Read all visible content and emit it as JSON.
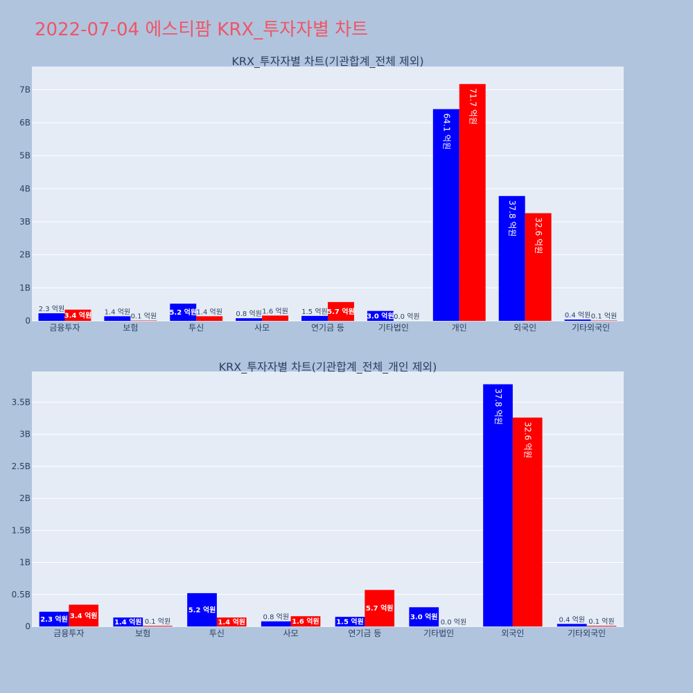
{
  "page": {
    "title": "2022-07-04 에스티팜 KRX_투자자별 차트"
  },
  "colors": {
    "background": "#b0c4de",
    "plot_bg": "#e5ecf6",
    "buy": "#0000ff",
    "sell": "#ff0000",
    "title": "#ef5566"
  },
  "chart_data": [
    {
      "type": "bar",
      "title": "KRX_투자자별 차트(기관합계_전체 제외)",
      "categories": [
        "금융투자",
        "보험",
        "투신",
        "사모",
        "연기금 등",
        "기타법인",
        "개인",
        "외국인",
        "기타외국인"
      ],
      "series": [
        {
          "values": [
            0.23,
            0.14,
            0.52,
            0.08,
            0.15,
            0.3,
            6.41,
            3.78,
            0.04
          ],
          "labels": [
            "2.3 억원",
            "1.4 억원",
            "5.2 억원",
            "0.8 억원",
            "1.5 억원",
            "3.0 억원",
            "64.1 억원",
            "37.8 억원",
            "0.4 억원"
          ]
        },
        {
          "values": [
            0.34,
            0.01,
            0.14,
            0.16,
            0.57,
            0.0,
            7.17,
            3.26,
            0.01
          ],
          "labels": [
            "3.4 억원",
            "0.1 억원",
            "1.4 억원",
            "1.6 억원",
            "5.7 억원",
            "0.0 억원",
            "71.7 억원",
            "32.6 억원",
            "0.1 억원"
          ]
        }
      ],
      "ylim": [
        0,
        7.7
      ],
      "yticks": [
        0,
        1,
        2,
        3,
        4,
        5,
        6,
        7
      ],
      "ytick_labels": [
        "0",
        "1B",
        "2B",
        "3B",
        "4B",
        "5B",
        "6B",
        "7B"
      ],
      "grid": true,
      "legend": "none"
    },
    {
      "type": "bar",
      "title": "KRX_투자자별 차트(기관합계_전체_개인 제외)",
      "categories": [
        "금융투자",
        "보험",
        "투신",
        "사모",
        "연기금 등",
        "기타법인",
        "외국인",
        "기타외국인"
      ],
      "series": [
        {
          "values": [
            0.23,
            0.14,
            0.52,
            0.08,
            0.15,
            0.3,
            3.78,
            0.04
          ],
          "labels": [
            "2.3 억원",
            "1.4 억원",
            "5.2 억원",
            "0.8 억원",
            "1.5 억원",
            "3.0 억원",
            "37.8 억원",
            "0.4 억원"
          ]
        },
        {
          "values": [
            0.34,
            0.01,
            0.14,
            0.16,
            0.57,
            0.0,
            3.26,
            0.01
          ],
          "labels": [
            "3.4 억원",
            "0.1 억원",
            "1.4 억원",
            "1.6 억원",
            "5.7 억원",
            "0.0 억원",
            "32.6 억원",
            "0.1 억원"
          ]
        }
      ],
      "ylim": [
        0,
        3.98
      ],
      "yticks": [
        0,
        0.5,
        1,
        1.5,
        2,
        2.5,
        3,
        3.5
      ],
      "ytick_labels": [
        "0",
        "0.5B",
        "1B",
        "1.5B",
        "2B",
        "2.5B",
        "3B",
        "3.5B"
      ],
      "grid": true,
      "legend": "none"
    }
  ]
}
